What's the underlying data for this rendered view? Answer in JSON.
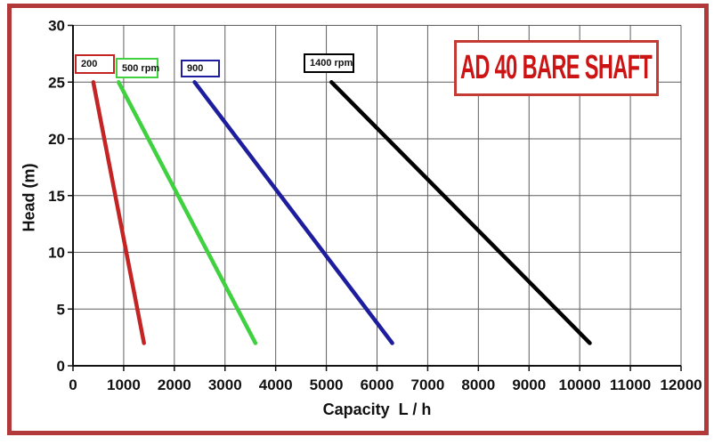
{
  "title_box": {
    "text": "AD 40 BARE SHAFT",
    "text_color": "#cc1414",
    "border_color": "#c33b33"
  },
  "frame": {
    "border_color": "#b13939"
  },
  "chart_data": {
    "type": "line",
    "title": "AD 40 BARE SHAFT",
    "xlabel": "Capacity  L / h",
    "ylabel": "Head (m)",
    "xlim": [
      0,
      12000
    ],
    "ylim": [
      0,
      30
    ],
    "x_ticks": [
      0,
      1000,
      2000,
      3000,
      4000,
      5000,
      6000,
      7000,
      8000,
      9000,
      10000,
      11000,
      12000
    ],
    "y_ticks": [
      0,
      5,
      10,
      15,
      20,
      25,
      30
    ],
    "grid": true,
    "grid_color": "#5f5f5f",
    "axis_color": "#111111",
    "legend_position": "boxed labels above each curve, inside plot",
    "series": [
      {
        "name": "200",
        "color": "#c42424",
        "points": [
          [
            400,
            25
          ],
          [
            1400,
            2
          ]
        ]
      },
      {
        "name": "500 rpm",
        "color": "#3fd13f",
        "points": [
          [
            900,
            25
          ],
          [
            3600,
            2
          ]
        ]
      },
      {
        "name": "900",
        "color": "#1d1d9e",
        "points": [
          [
            2400,
            25
          ],
          [
            6300,
            2
          ]
        ]
      },
      {
        "name": "1400 rpm",
        "color": "#000000",
        "points": [
          [
            5100,
            25
          ],
          [
            10200,
            2
          ]
        ]
      }
    ]
  }
}
